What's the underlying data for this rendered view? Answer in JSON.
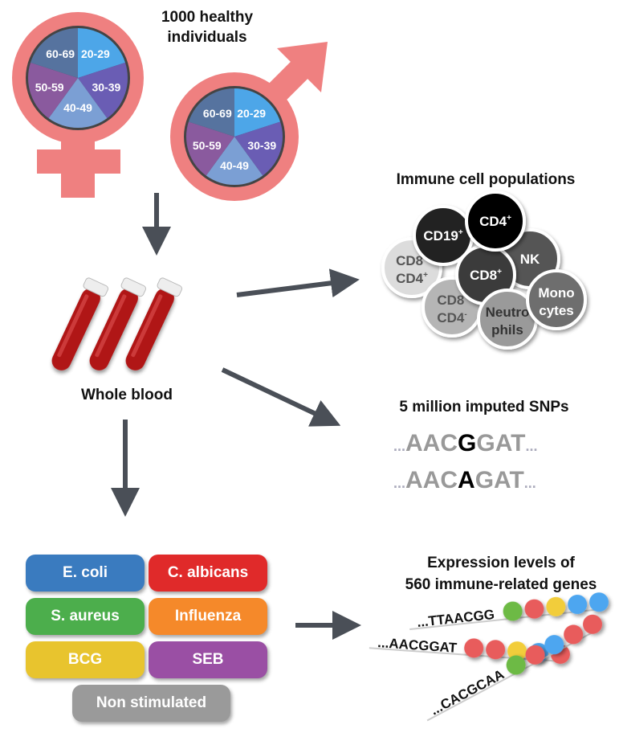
{
  "cohort": {
    "title_line1": "1000 healthy",
    "title_line2": "individuals",
    "age_groups": [
      "20-29",
      "30-39",
      "40-49",
      "50-59",
      "60-69"
    ],
    "age_colors": [
      "#4da6e8",
      "#6a5db4",
      "#7b9fd4",
      "#8a5a9e",
      "#56739f"
    ],
    "symbol_color": "#ef8080"
  },
  "blood": {
    "label": "Whole blood"
  },
  "cells": {
    "title": "Immune cell populations",
    "items": [
      {
        "label": "CD8",
        "sup": "+",
        "label2": "CD4",
        "sup2": "+",
        "fill": "#dcdcdc",
        "text": "#555"
      },
      {
        "label": "CD19",
        "sup": "+",
        "fill": "#222",
        "text": "#fff"
      },
      {
        "label": "CD8",
        "sup": "-",
        "label2": "CD4",
        "sup2": "-",
        "fill": "#b5b5b5",
        "text": "#555"
      },
      {
        "label": "NK",
        "fill": "#555",
        "text": "#fff"
      },
      {
        "label": "CD8",
        "sup": "+",
        "fill": "#3a3a3a",
        "text": "#fff"
      },
      {
        "label": "Neutro",
        "label2": "phils",
        "fill": "#9a9a9a",
        "text": "#333"
      },
      {
        "label": "Mono",
        "label2": "cytes",
        "fill": "#6e6e6e",
        "text": "#fff"
      },
      {
        "label": "CD4",
        "sup": "+",
        "fill": "#000",
        "text": "#fff"
      }
    ]
  },
  "snps": {
    "title": "5 million imputed SNPs",
    "seq1": [
      "AAC",
      "G",
      "GAT"
    ],
    "seq2": [
      "AAC",
      "A",
      "GAT"
    ],
    "dots": "..."
  },
  "expression": {
    "title_line1": "Expression levels of",
    "title_line2": "560 immune-related genes",
    "sequences": [
      {
        "text": "...TTAACGG",
        "dots": [
          "#6dba45",
          "#e85c5c",
          "#f2cd3a",
          "#4da6f0",
          "#4da6f0"
        ]
      },
      {
        "text": "...AACGGAT",
        "dots": [
          "#e85c5c",
          "#e85c5c",
          "#f2cd3a",
          "#4da6f0",
          "#e85c5c"
        ]
      },
      {
        "text": "...CACGCAA",
        "dots": [
          "#6dba45",
          "#e85c5c",
          "#4da6f0",
          "#e85c5c",
          "#e85c5c"
        ]
      }
    ]
  },
  "stimuli": [
    {
      "label": "E. coli",
      "color": "#3a7bbf"
    },
    {
      "label": "C. albicans",
      "color": "#e02a2a"
    },
    {
      "label": "S. aureus",
      "color": "#4cae4c"
    },
    {
      "label": "Influenza",
      "color": "#f5892a"
    },
    {
      "label": "BCG",
      "color": "#e8c42e"
    },
    {
      "label": "SEB",
      "color": "#9a4fa4"
    },
    {
      "label": "Non stimulated",
      "color": "#9a9a9a"
    }
  ],
  "arrow_color": "#4a4f57"
}
